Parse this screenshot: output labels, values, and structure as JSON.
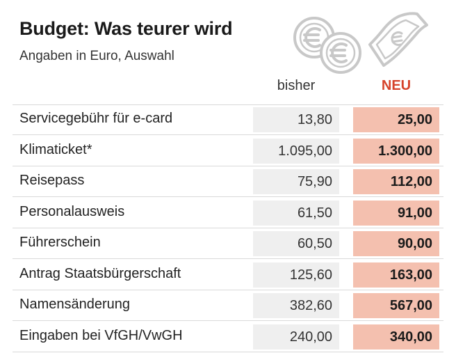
{
  "header": {
    "title": "Budget: Was teurer wird",
    "subtitle": "Angaben in Euro, Auswahl"
  },
  "icons": {
    "coins": "euro-coins-icon",
    "bill": "euro-banknote-icon"
  },
  "colors": {
    "new_cell_bg": "#f4c0af",
    "old_cell_bg": "#efefef",
    "new_header": "#d6432b",
    "icon_gray": "#c8c8c8"
  },
  "chart_data": {
    "type": "table",
    "columns": [
      "bisher",
      "NEU"
    ],
    "rows": [
      {
        "label": "Servicegebühr für e-card",
        "bisher": "13,80",
        "neu": "25,00"
      },
      {
        "label": "Klimaticket*",
        "bisher": "1.095,00",
        "neu": "1.300,00"
      },
      {
        "label": "Reisepass",
        "bisher": "75,90",
        "neu": "112,00"
      },
      {
        "label": "Personalausweis",
        "bisher": "61,50",
        "neu": "91,00"
      },
      {
        "label": "Führerschein",
        "bisher": "60,50",
        "neu": "90,00"
      },
      {
        "label": "Antrag Staatsbürgerschaft",
        "bisher": "125,60",
        "neu": "163,00"
      },
      {
        "label": "Namensänderung",
        "bisher": "382,60",
        "neu": "567,00"
      },
      {
        "label": "Eingaben bei VfGH/VwGH",
        "bisher": "240,00",
        "neu": "340,00"
      }
    ]
  }
}
